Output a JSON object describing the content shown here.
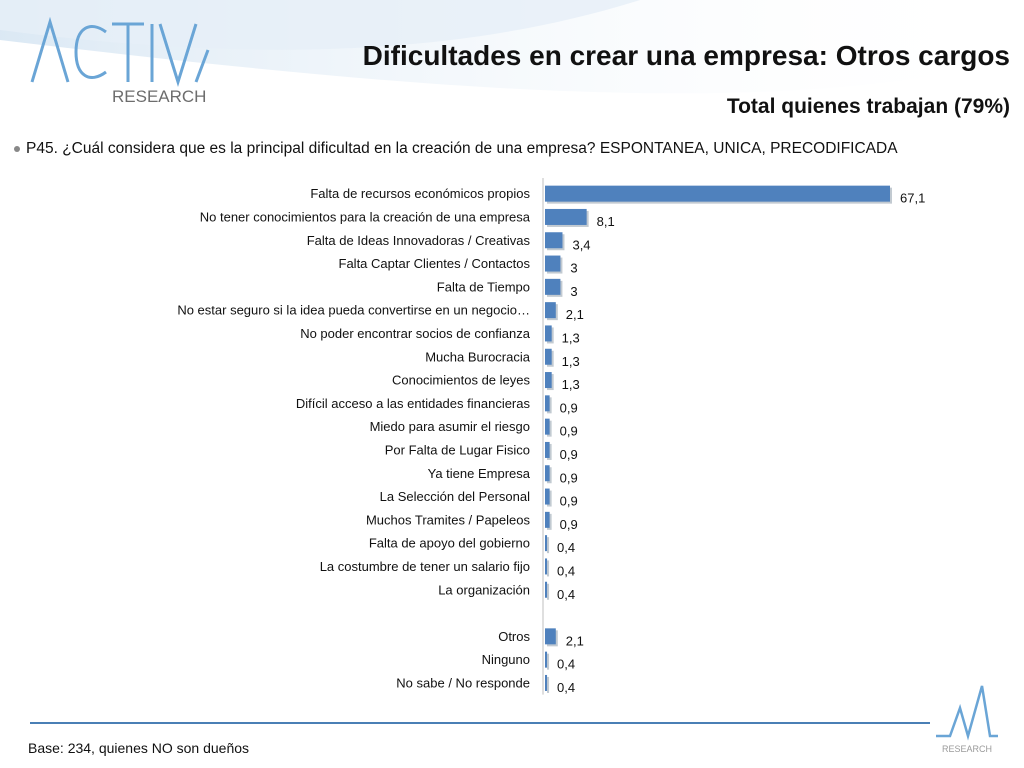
{
  "header": {
    "logo_text_main": "ACTIVA",
    "logo_text_sub": "RESEARCH",
    "title": "Dificultades en crear una empresa: Otros cargos",
    "subtitle": "Total quienes trabajan (79%)"
  },
  "question": "P45. ¿Cuál considera que es la principal dificultad en la creación de una empresa? ESPONTANEA, UNICA, PRECODIFICADA",
  "footer": {
    "base": "Base: 234, quienes NO son dueños",
    "corner_logo_text": "RESEARCH"
  },
  "colors": {
    "bar": "#4f81bd",
    "accent": "#4a7fb5"
  },
  "chart_data": {
    "type": "bar",
    "orientation": "horizontal",
    "categories": [
      "Falta de recursos económicos propios",
      "No tener conocimientos para la creación de una empresa",
      "Falta de Ideas Innovadoras / Creativas",
      "Falta Captar Clientes / Contactos",
      "Falta de Tiempo",
      "No estar seguro si la idea pueda convertirse en un negocio…",
      "No poder encontrar socios de confianza",
      "Mucha Burocracia",
      "Conocimientos de leyes",
      "Difícil acceso a las entidades financieras",
      "Miedo para asumir el riesgo",
      "Por Falta de Lugar Fisico",
      "Ya tiene Empresa",
      "La Selección del Personal",
      "Muchos Tramites / Papeleos",
      "Falta de apoyo del gobierno",
      "La costumbre de tener un salario fijo",
      "La organización",
      "",
      "Otros",
      "Ninguno",
      "No sabe / No responde"
    ],
    "values": [
      67.1,
      8.1,
      3.4,
      3,
      3,
      2.1,
      1.3,
      1.3,
      1.3,
      0.9,
      0.9,
      0.9,
      0.9,
      0.9,
      0.9,
      0.4,
      0.4,
      0.4,
      null,
      2.1,
      0.4,
      0.4
    ],
    "value_labels": [
      "67,1",
      "8,1",
      "3,4",
      "3",
      "3",
      "2,1",
      "1,3",
      "1,3",
      "1,3",
      "0,9",
      "0,9",
      "0,9",
      "0,9",
      "0,9",
      "0,9",
      "0,4",
      "0,4",
      "0,4",
      "",
      "2,1",
      "0,4",
      "0,4"
    ],
    "xlim": [
      0,
      67.1
    ],
    "grid": false,
    "legend": "none"
  }
}
